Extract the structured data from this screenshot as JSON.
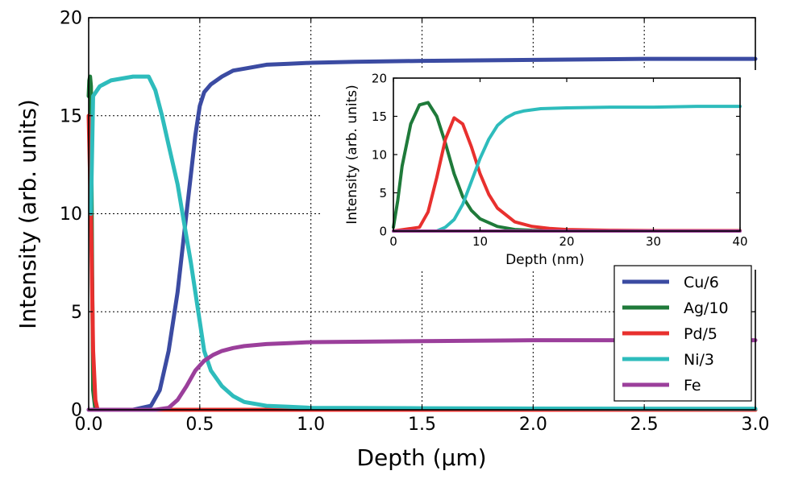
{
  "chart_data": {
    "main": {
      "type": "line",
      "xlabel": "Depth (µm)",
      "ylabel": "Intensity (arb. units)",
      "xlim": [
        0.0,
        3.0
      ],
      "ylim": [
        0,
        20
      ],
      "xticks": [
        "0.0",
        "0.5",
        "1.0",
        "1.5",
        "2.0",
        "2.5",
        "3.0"
      ],
      "yticks": [
        "0",
        "5",
        "10",
        "15",
        "20"
      ],
      "grid": true,
      "legend_position": "lower-right",
      "series": [
        {
          "name": "Cu/6",
          "color": "#3b4ba2",
          "x": [
            0.0,
            0.2,
            0.28,
            0.32,
            0.36,
            0.4,
            0.43,
            0.46,
            0.48,
            0.5,
            0.52,
            0.55,
            0.6,
            0.65,
            0.7,
            0.8,
            0.9,
            1.0,
            1.2,
            1.5,
            2.0,
            2.5,
            3.0
          ],
          "y": [
            0,
            0,
            0.2,
            1.0,
            3.0,
            6.0,
            9.0,
            12.0,
            14.0,
            15.5,
            16.2,
            16.6,
            17.0,
            17.3,
            17.4,
            17.6,
            17.65,
            17.7,
            17.75,
            17.8,
            17.85,
            17.9,
            17.9
          ]
        },
        {
          "name": "Ag/10",
          "color": "#1f7a3a",
          "x": [
            0.0,
            0.003,
            0.006,
            0.01,
            0.015,
            0.02,
            0.03,
            3.0
          ],
          "y": [
            16.0,
            16.8,
            17.0,
            16.5,
            8.0,
            1.0,
            0,
            0
          ]
        },
        {
          "name": "Pd/5",
          "color": "#e8302e",
          "x": [
            0.0,
            0.01,
            0.02,
            0.03,
            0.04,
            3.0
          ],
          "y": [
            15.0,
            10.0,
            3.0,
            0.5,
            0,
            0
          ]
        },
        {
          "name": "Ni/3",
          "color": "#2ebcbc",
          "x": [
            0.01,
            0.02,
            0.05,
            0.1,
            0.2,
            0.27,
            0.3,
            0.33,
            0.36,
            0.4,
            0.43,
            0.46,
            0.48,
            0.5,
            0.52,
            0.55,
            0.6,
            0.65,
            0.7,
            0.8,
            0.9,
            1.0,
            1.5,
            2.0,
            3.0
          ],
          "y": [
            10.0,
            16.0,
            16.5,
            16.8,
            17.0,
            17.0,
            16.3,
            15.0,
            13.5,
            11.5,
            9.5,
            7.5,
            6.0,
            4.5,
            3.0,
            2.0,
            1.2,
            0.7,
            0.4,
            0.2,
            0.15,
            0.1,
            0.08,
            0.06,
            0.05
          ]
        },
        {
          "name": "Fe",
          "color": "#9b3f9b",
          "x": [
            0.0,
            0.3,
            0.36,
            0.4,
            0.44,
            0.48,
            0.52,
            0.56,
            0.6,
            0.65,
            0.7,
            0.8,
            0.9,
            1.0,
            1.5,
            2.0,
            2.5,
            3.0
          ],
          "y": [
            0,
            0,
            0.1,
            0.5,
            1.2,
            2.0,
            2.5,
            2.8,
            3.0,
            3.15,
            3.25,
            3.35,
            3.4,
            3.45,
            3.5,
            3.55,
            3.55,
            3.55
          ]
        }
      ]
    },
    "inset": {
      "type": "line",
      "xlabel": "Depth (nm)",
      "ylabel": "Intensity (arb. units)",
      "xlim": [
        0,
        40
      ],
      "ylim": [
        0,
        20
      ],
      "xticks": [
        "0",
        "10",
        "20",
        "30",
        "40"
      ],
      "yticks": [
        "0",
        "5",
        "10",
        "15",
        "20"
      ],
      "grid": false,
      "series": [
        {
          "name": "Ag/10",
          "color": "#1f7a3a",
          "x": [
            0,
            0.5,
            1,
            2,
            3,
            4,
            5,
            6,
            7,
            8,
            9,
            10,
            12,
            14,
            16,
            18,
            20
          ],
          "y": [
            0.5,
            4.0,
            8.5,
            14.0,
            16.5,
            16.8,
            15.0,
            11.5,
            7.5,
            4.5,
            2.7,
            1.6,
            0.6,
            0.2,
            0.1,
            0.05,
            0
          ]
        },
        {
          "name": "Pd/5",
          "color": "#e8302e",
          "x": [
            0,
            3,
            4,
            5,
            6,
            7,
            8,
            9,
            10,
            11,
            12,
            14,
            16,
            18,
            20,
            25,
            30,
            40
          ],
          "y": [
            0,
            0.5,
            2.5,
            7.0,
            12.0,
            14.8,
            14.0,
            11.0,
            7.5,
            4.8,
            3.0,
            1.2,
            0.6,
            0.35,
            0.2,
            0.1,
            0.05,
            0.05
          ]
        },
        {
          "name": "Ni/3",
          "color": "#2ebcbc",
          "x": [
            0,
            5,
            6,
            7,
            8,
            9,
            10,
            11,
            12,
            13,
            14,
            15,
            17,
            20,
            25,
            30,
            35,
            40
          ],
          "y": [
            0,
            0,
            0.5,
            1.5,
            3.5,
            6.5,
            9.5,
            12.0,
            13.8,
            14.8,
            15.4,
            15.7,
            16.0,
            16.1,
            16.2,
            16.2,
            16.3,
            16.3
          ]
        },
        {
          "name": "Fe",
          "color": "#9b3f9b",
          "x": [
            0,
            40
          ],
          "y": [
            0,
            0
          ]
        }
      ]
    }
  }
}
